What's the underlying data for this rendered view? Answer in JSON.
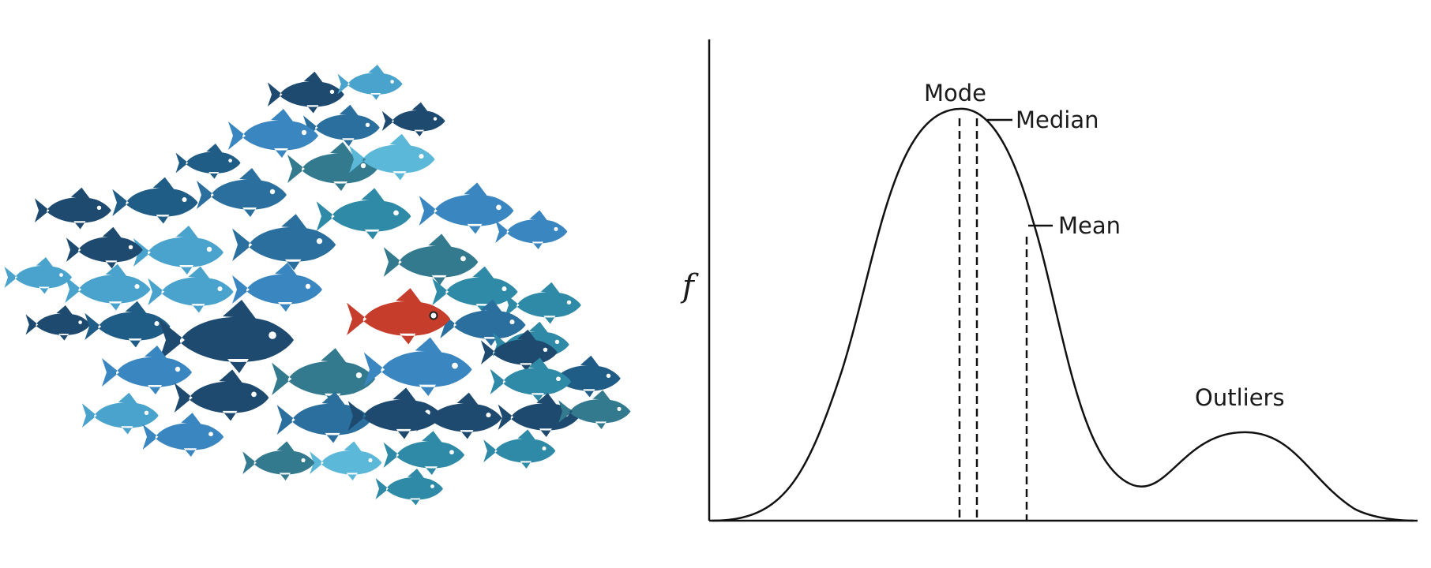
{
  "colors": {
    "fish_palette": [
      "#1d4a6e",
      "#2a6f9e",
      "#3a86c0",
      "#4aa3cc",
      "#2e8aa6",
      "#5bb8d9",
      "#347a8f",
      "#1f5c86"
    ],
    "red_fish": "#c73d2b",
    "curve": "#111111"
  },
  "diagram": {
    "type": "distribution-sketch",
    "y_axis_label": "f",
    "markers": {
      "mode": "Mode",
      "median": "Median",
      "mean": "Mean",
      "outliers": "Outliers"
    }
  }
}
